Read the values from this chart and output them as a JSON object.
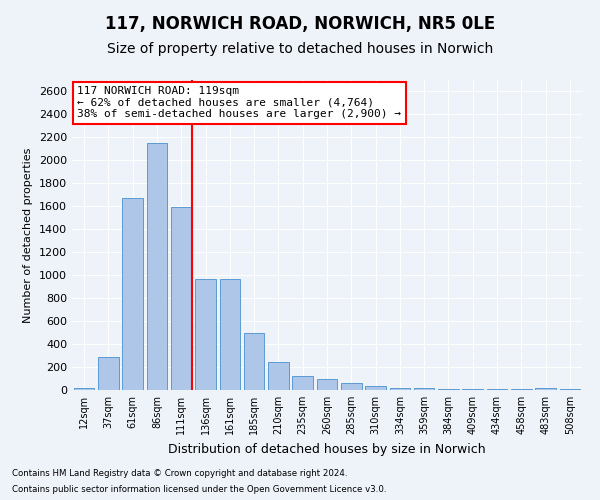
{
  "title1": "117, NORWICH ROAD, NORWICH, NR5 0LE",
  "title2": "Size of property relative to detached houses in Norwich",
  "xlabel": "Distribution of detached houses by size in Norwich",
  "ylabel": "Number of detached properties",
  "categories": [
    "12sqm",
    "37sqm",
    "61sqm",
    "86sqm",
    "111sqm",
    "136sqm",
    "161sqm",
    "185sqm",
    "210sqm",
    "235sqm",
    "260sqm",
    "285sqm",
    "310sqm",
    "334sqm",
    "359sqm",
    "384sqm",
    "409sqm",
    "434sqm",
    "458sqm",
    "483sqm",
    "508sqm"
  ],
  "values": [
    20,
    290,
    1670,
    2150,
    1590,
    970,
    970,
    500,
    240,
    120,
    95,
    60,
    35,
    20,
    15,
    10,
    10,
    5,
    5,
    15,
    5
  ],
  "bar_color": "#aec6e8",
  "bar_edge_color": "#5b9bd5",
  "vline_color": "red",
  "annotation_text": "117 NORWICH ROAD: 119sqm\n← 62% of detached houses are smaller (4,764)\n38% of semi-detached houses are larger (2,900) →",
  "annotation_box_color": "white",
  "annotation_box_edge": "red",
  "ylim": [
    0,
    2700
  ],
  "yticks": [
    0,
    200,
    400,
    600,
    800,
    1000,
    1200,
    1400,
    1600,
    1800,
    2000,
    2200,
    2400,
    2600
  ],
  "footer1": "Contains HM Land Registry data © Crown copyright and database right 2024.",
  "footer2": "Contains public sector information licensed under the Open Government Licence v3.0.",
  "bg_color": "#eef2f9",
  "grid_color": "white",
  "title1_fontsize": 12,
  "title2_fontsize": 10,
  "vline_pos": 4.43
}
